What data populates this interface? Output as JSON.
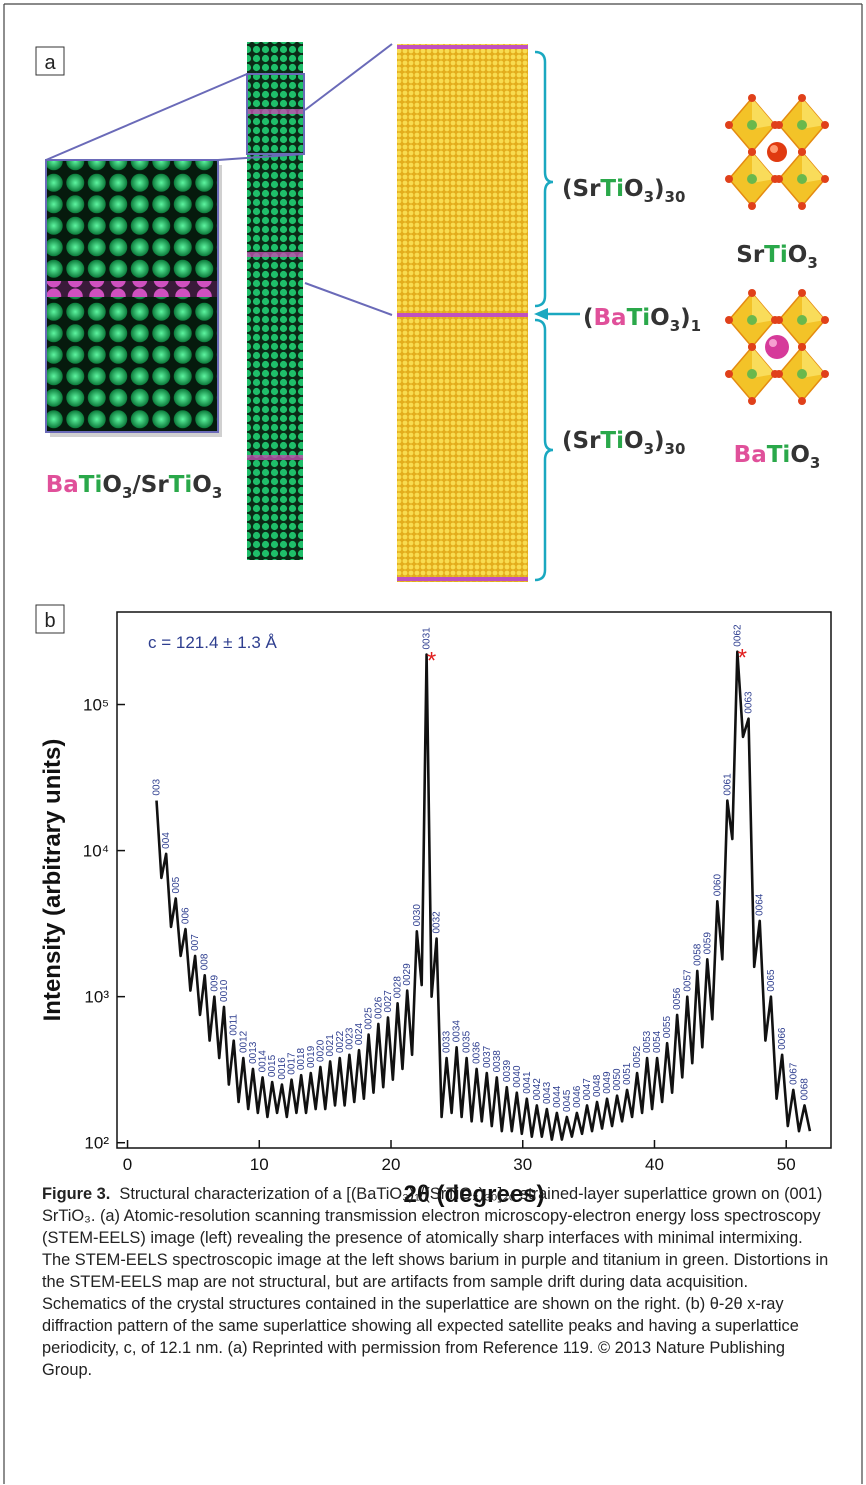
{
  "panel_a": {
    "label": "a",
    "strontium_top": [
      "(Sr",
      "Ti",
      "O",
      "3",
      ")",
      "30"
    ],
    "barium_layer": [
      "(",
      "Ba",
      "Ti",
      "O",
      "3",
      ")",
      "1"
    ],
    "strontium_bottom": [
      "(Sr",
      "Ti",
      "O",
      "3",
      ")",
      "30"
    ],
    "sto_name": [
      "Sr",
      "Ti",
      "O",
      "3"
    ],
    "bto_name": [
      "Ba",
      "Ti",
      "O",
      "3"
    ],
    "stem_label": [
      "Ba",
      "Ti",
      "O",
      "3",
      "/Sr",
      "Ti",
      "O",
      "3"
    ]
  },
  "panel_b": {
    "label": "b"
  },
  "chart_data": {
    "type": "line",
    "log_y": true,
    "xlabel": "2θ (degrees)",
    "ylabel": "Intensity (arbitrary units)",
    "annotation": "c = 121.4 ± 1.3 Å",
    "xlim": [
      -0.8,
      53.4
    ],
    "ylim": [
      92,
      430000
    ],
    "xticks": [
      0,
      10,
      20,
      30,
      40,
      50
    ],
    "yticks": [
      {
        "value": 100,
        "label": "10²"
      },
      {
        "value": 1000,
        "label": "10³"
      },
      {
        "value": 10000,
        "label": "10⁴"
      },
      {
        "value": 100000,
        "label": "10⁵"
      }
    ],
    "x": [
      2.2,
      2.57,
      2.93,
      3.3,
      3.66,
      4.03,
      4.4,
      4.77,
      5.13,
      5.5,
      5.86,
      6.23,
      6.59,
      6.96,
      7.32,
      7.69,
      8.06,
      8.43,
      8.79,
      9.16,
      9.52,
      9.89,
      10.25,
      10.62,
      10.98,
      11.35,
      11.72,
      12.09,
      12.45,
      12.82,
      13.18,
      13.55,
      13.91,
      14.28,
      14.64,
      15.01,
      15.38,
      15.75,
      16.11,
      16.48,
      16.84,
      17.21,
      17.57,
      17.94,
      18.3,
      18.67,
      19.04,
      19.41,
      19.77,
      20.14,
      20.5,
      20.87,
      21.23,
      21.6,
      21.96,
      22.33,
      22.7,
      23.08,
      23.46,
      23.84,
      24.22,
      24.6,
      24.98,
      25.36,
      25.74,
      26.12,
      26.5,
      26.89,
      27.27,
      27.65,
      28.03,
      28.41,
      28.79,
      29.17,
      29.55,
      29.93,
      30.31,
      30.69,
      31.07,
      31.45,
      31.83,
      32.21,
      32.59,
      32.97,
      33.35,
      33.73,
      34.11,
      34.5,
      34.88,
      35.26,
      35.64,
      36.02,
      36.4,
      36.78,
      37.16,
      37.54,
      37.92,
      38.3,
      38.68,
      39.06,
      39.44,
      39.82,
      40.2,
      40.58,
      40.96,
      41.34,
      41.72,
      42.11,
      42.49,
      42.87,
      43.25,
      43.63,
      44.01,
      44.39,
      44.77,
      45.15,
      45.53,
      45.91,
      46.29,
      46.72,
      47.14,
      47.57,
      47.99,
      48.42,
      48.84,
      49.27,
      49.69,
      50.12,
      50.54,
      50.97,
      51.39,
      51.8
    ],
    "series": [
      {
        "color": "#111111",
        "values": [
          22000,
          6500,
          9500,
          3000,
          4700,
          1900,
          2900,
          1100,
          1900,
          750,
          1400,
          500,
          1000,
          380,
          850,
          250,
          500,
          190,
          380,
          170,
          320,
          160,
          280,
          150,
          260,
          160,
          250,
          150,
          270,
          160,
          290,
          160,
          300,
          170,
          330,
          170,
          360,
          180,
          380,
          180,
          400,
          190,
          430,
          200,
          550,
          220,
          650,
          240,
          720,
          270,
          900,
          320,
          1100,
          400,
          2800,
          1200,
          220000,
          1000,
          2500,
          150,
          380,
          160,
          450,
          150,
          380,
          140,
          320,
          140,
          300,
          130,
          280,
          120,
          240,
          120,
          220,
          115,
          200,
          110,
          180,
          110,
          170,
          105,
          160,
          105,
          150,
          110,
          160,
          115,
          180,
          120,
          190,
          125,
          200,
          130,
          210,
          140,
          230,
          150,
          300,
          160,
          380,
          170,
          380,
          190,
          480,
          220,
          750,
          280,
          1000,
          350,
          1500,
          450,
          1800,
          700,
          4500,
          1800,
          22000,
          12000,
          230000,
          60000,
          80000,
          1600,
          3300,
          500,
          1000,
          200,
          400,
          130,
          230,
          120,
          180,
          120
        ]
      }
    ],
    "peak_labels": [
      {
        "text": "003",
        "x": 2.2,
        "y": 22000
      },
      {
        "text": "004",
        "x": 2.93,
        "y": 9500
      },
      {
        "text": "005",
        "x": 3.66,
        "y": 4700
      },
      {
        "text": "006",
        "x": 4.4,
        "y": 2900
      },
      {
        "text": "007",
        "x": 5.13,
        "y": 1900
      },
      {
        "text": "008",
        "x": 5.86,
        "y": 1400
      },
      {
        "text": "009",
        "x": 6.59,
        "y": 1000
      },
      {
        "text": "0010",
        "x": 7.32,
        "y": 850
      },
      {
        "text": "0011",
        "x": 8.06,
        "y": 500
      },
      {
        "text": "0012",
        "x": 8.79,
        "y": 380
      },
      {
        "text": "0013",
        "x": 9.52,
        "y": 320
      },
      {
        "text": "0014",
        "x": 10.25,
        "y": 280
      },
      {
        "text": "0015",
        "x": 10.98,
        "y": 260
      },
      {
        "text": "0016",
        "x": 11.72,
        "y": 250
      },
      {
        "text": "0017",
        "x": 12.45,
        "y": 270
      },
      {
        "text": "0018",
        "x": 13.18,
        "y": 290
      },
      {
        "text": "0019",
        "x": 13.91,
        "y": 300
      },
      {
        "text": "0020",
        "x": 14.64,
        "y": 330
      },
      {
        "text": "0021",
        "x": 15.38,
        "y": 360
      },
      {
        "text": "0022",
        "x": 16.11,
        "y": 380
      },
      {
        "text": "0023",
        "x": 16.84,
        "y": 400
      },
      {
        "text": "0024",
        "x": 17.57,
        "y": 430
      },
      {
        "text": "0025",
        "x": 18.3,
        "y": 550
      },
      {
        "text": "0026",
        "x": 19.04,
        "y": 650
      },
      {
        "text": "0027",
        "x": 19.77,
        "y": 720
      },
      {
        "text": "0028",
        "x": 20.5,
        "y": 900
      },
      {
        "text": "0029",
        "x": 21.23,
        "y": 1100
      },
      {
        "text": "0030",
        "x": 21.96,
        "y": 2800
      },
      {
        "text": "0031",
        "x": 22.7,
        "y": 220000
      },
      {
        "text": "0032",
        "x": 23.46,
        "y": 2500
      },
      {
        "text": "0033",
        "x": 24.22,
        "y": 380
      },
      {
        "text": "0034",
        "x": 24.98,
        "y": 450
      },
      {
        "text": "0035",
        "x": 25.74,
        "y": 380
      },
      {
        "text": "0036",
        "x": 26.5,
        "y": 320
      },
      {
        "text": "0037",
        "x": 27.27,
        "y": 300
      },
      {
        "text": "0038",
        "x": 28.03,
        "y": 280
      },
      {
        "text": "0039",
        "x": 28.79,
        "y": 240
      },
      {
        "text": "0040",
        "x": 29.55,
        "y": 220
      },
      {
        "text": "0041",
        "x": 30.31,
        "y": 200
      },
      {
        "text": "0042",
        "x": 31.07,
        "y": 180
      },
      {
        "text": "0043",
        "x": 31.83,
        "y": 170
      },
      {
        "text": "0044",
        "x": 32.59,
        "y": 160
      },
      {
        "text": "0045",
        "x": 33.35,
        "y": 150
      },
      {
        "text": "0046",
        "x": 34.11,
        "y": 160
      },
      {
        "text": "0047",
        "x": 34.88,
        "y": 180
      },
      {
        "text": "0048",
        "x": 35.64,
        "y": 190
      },
      {
        "text": "0049",
        "x": 36.4,
        "y": 200
      },
      {
        "text": "0050",
        "x": 37.16,
        "y": 210
      },
      {
        "text": "0051",
        "x": 37.92,
        "y": 230
      },
      {
        "text": "0052",
        "x": 38.68,
        "y": 300
      },
      {
        "text": "0053",
        "x": 39.44,
        "y": 380
      },
      {
        "text": "0054",
        "x": 40.2,
        "y": 380
      },
      {
        "text": "0055",
        "x": 40.96,
        "y": 480
      },
      {
        "text": "0056",
        "x": 41.72,
        "y": 750
      },
      {
        "text": "0057",
        "x": 42.49,
        "y": 1000
      },
      {
        "text": "0058",
        "x": 43.25,
        "y": 1500
      },
      {
        "text": "0059",
        "x": 44.01,
        "y": 1800
      },
      {
        "text": "0060",
        "x": 44.77,
        "y": 4500
      },
      {
        "text": "0061",
        "x": 45.53,
        "y": 22000
      },
      {
        "text": "0062",
        "x": 46.29,
        "y": 230000
      },
      {
        "text": "0063",
        "x": 47.14,
        "y": 80000
      },
      {
        "text": "0064",
        "x": 47.99,
        "y": 3300
      },
      {
        "text": "0065",
        "x": 48.84,
        "y": 1000
      },
      {
        "text": "0066",
        "x": 49.69,
        "y": 400
      },
      {
        "text": "0067",
        "x": 50.54,
        "y": 230
      },
      {
        "text": "0068",
        "x": 51.39,
        "y": 180
      }
    ],
    "markers": [
      {
        "text": "*",
        "x": 22.7,
        "y": 220000,
        "color": "#e02020"
      },
      {
        "text": "*",
        "x": 46.29,
        "y": 230000,
        "color": "#e02020"
      }
    ]
  },
  "caption": {
    "label": "Figure 3.",
    "text": "Structural characterization of a [(BaTiO₃)₁/(SrTiO₃)₃₀]₂₀ strained-layer superlattice grown on (001) SrTiO₃. (a) Atomic-resolution scanning transmission electron microscopy-electron energy loss spectroscopy (STEM-EELS) image (left) revealing the presence of atomically sharp interfaces with minimal intermixing. The STEM-EELS spectroscopic image at the left shows barium in purple and titanium in green. Distortions in the STEM-EELS map are not structural, but are artifacts from sample drift during data acquisition. Schematics of the crystal structures contained in the superlattice are shown on the right. (b) θ-2θ x-ray diffraction pattern of the same superlattice showing all expected satellite peaks and having a superlattice periodicity, c, of 12.1 nm. (a) Reprinted with permission from Reference 119. © 2013 Nature Publishing Group."
  }
}
